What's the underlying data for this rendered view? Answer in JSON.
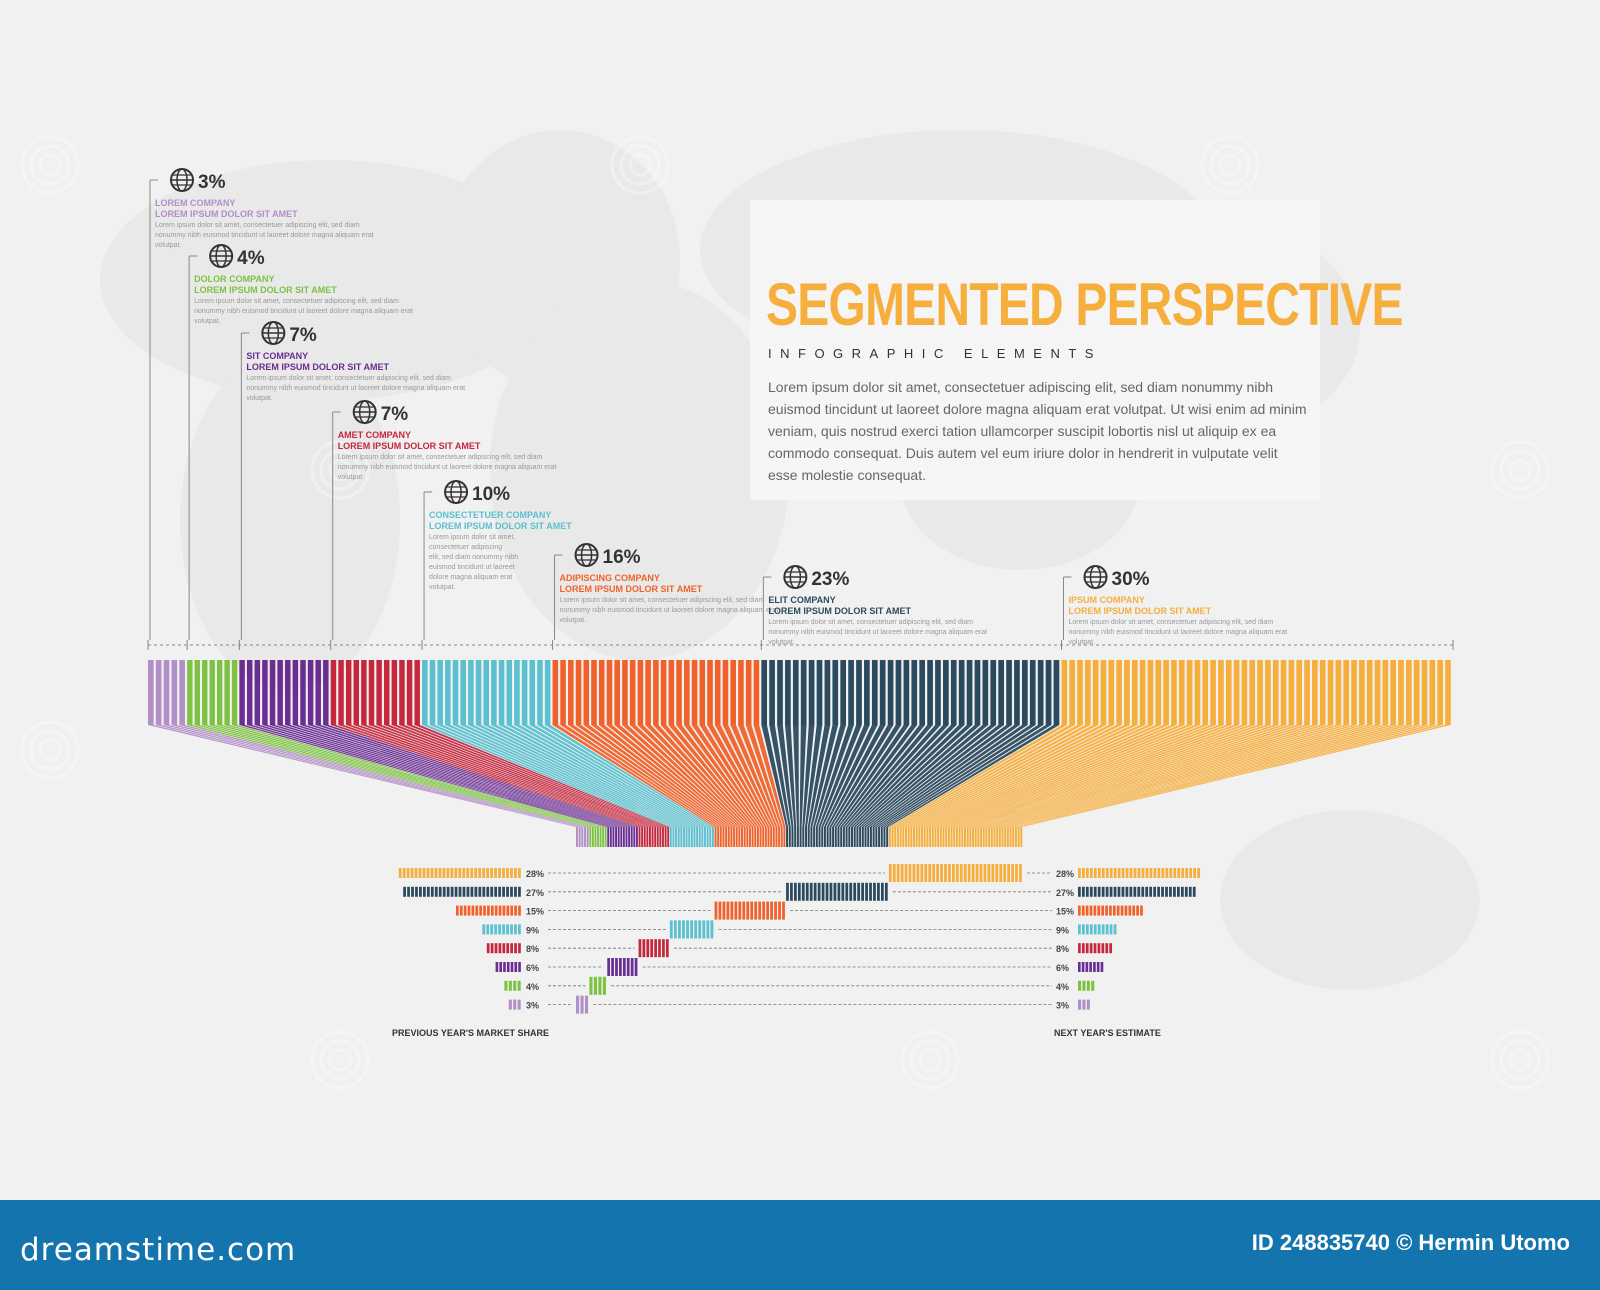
{
  "header": {
    "title": "SEGMENTED PERSPECTIVE",
    "subtitle": "INFOGRAPHIC ELEMENTS",
    "body": "Lorem ipsum dolor sit amet, consectetuer adipiscing elit, sed diam nonummy nibh euismod tincidunt ut laoreet dolore magna aliquam erat volutpat. Ut wisi enim ad minim veniam, quis nostrud exerci tation ullamcorper suscipit lobortis nisl ut aliquip ex ea commodo consequat. Duis autem vel eum iriure dolor in hendrerit in vulputate velit esse molestie consequat."
  },
  "footer": {
    "brand": "dreamstime.com",
    "credit": "ID 248835740 © Hermin Utomo"
  },
  "icons": {
    "segment_icon": "globe-icon",
    "watermark_icon": "spiral-logo-icon"
  },
  "chart_data": {
    "type": "bar",
    "segments": [
      {
        "value": 3,
        "label": "3%",
        "company": "LOREM COMPANY",
        "subtitle": "LOREM IPSUM DOLOR SIT AMET",
        "desc": "Lorem ipsum dolor sit amet, consectetuer adipiscing elit, sed diam nonummy nibh euismod tincidunt ut laoreet dolore magna aliquam erat volutpat.",
        "color": "#b28fc6"
      },
      {
        "value": 4,
        "label": "4%",
        "company": "DOLOR COMPANY",
        "subtitle": "LOREM IPSUM DOLOR SIT AMET",
        "desc": "Lorem ipsum dolor sit amet, consectetuer adipiscing elit, sed diam nonummy nibh euismod tincidunt ut laoreet dolore magna aliquam erat volutpat.",
        "color": "#7dc242"
      },
      {
        "value": 7,
        "label": "7%",
        "company": "SIT COMPANY",
        "subtitle": "LOREM IPSUM DOLOR SIT AMET",
        "desc": "Lorem ipsum dolor sit amet, consectetuer adipiscing elit, sed diam nonummy nibh euismod tincidunt ut laoreet dolore magna aliquam erat volutpat.",
        "color": "#6a2d91"
      },
      {
        "value": 7,
        "label": "7%",
        "company": "AMET COMPANY",
        "subtitle": "LOREM IPSUM DOLOR SIT AMET",
        "desc": "Lorem ipsum dolor sit amet, consectetuer adipiscing elit, sed diam nonummy nibh euismod tincidunt ut laoreet dolore magna aliquam erat volutpat.",
        "color": "#c5283d"
      },
      {
        "value": 10,
        "label": "10%",
        "company": "CONSECTETUER COMPANY",
        "subtitle": "LOREM IPSUM DOLOR SIT AMET",
        "desc": "Lorem ipsum dolor sit amet, consectetuer adipiscing elit, sed diam nonummy nibh euismod tincidunt ut laoreet dolore magna aliquam erat volutpat.",
        "color": "#5bc0cf"
      },
      {
        "value": 16,
        "label": "16%",
        "company": "ADIPISCING COMPANY",
        "subtitle": "LOREM IPSUM DOLOR SIT AMET",
        "desc": "Lorem ipsum dolor sit amet, consectetuer adipiscing elit, sed diam nonummy nibh euismod tincidunt ut laoreet dolore magna aliquam erat volutpat.",
        "color": "#f0622a"
      },
      {
        "value": 23,
        "label": "23%",
        "company": "ELIT COMPANY",
        "subtitle": "LOREM IPSUM DOLOR SIT AMET",
        "desc": "Lorem ipsum dolor sit amet, consectetuer adipiscing elit, sed diam nonummy nibh euismod tincidunt ut laoreet dolore magna aliquam erat volutpat.",
        "color": "#2c4a5e"
      },
      {
        "value": 30,
        "label": "30%",
        "company": "IPSUM COMPANY",
        "subtitle": "LOREM IPSUM DOLOR SIT AMET",
        "desc": "Lorem ipsum dolor sit amet, consectetuer adipiscing elit, sed diam nonummy nibh euismod tincidunt ut laoreet dolore magna aliquam erat volutpat.",
        "color": "#f6ae3c"
      }
    ],
    "comparison": {
      "left_label": "PREVIOUS YEAR'S MARKET SHARE",
      "right_label": "NEXT YEAR'S ESTIMATE",
      "rows": [
        {
          "color": "#f6ae3c",
          "previous": 28,
          "previous_label": "28%",
          "next": 28,
          "next_label": "28%"
        },
        {
          "color": "#2c4a5e",
          "previous": 27,
          "previous_label": "27%",
          "next": 27,
          "next_label": "27%"
        },
        {
          "color": "#f0622a",
          "previous": 15,
          "previous_label": "15%",
          "next": 15,
          "next_label": "15%"
        },
        {
          "color": "#5bc0cf",
          "previous": 9,
          "previous_label": "9%",
          "next": 9,
          "next_label": "9%"
        },
        {
          "color": "#c5283d",
          "previous": 8,
          "previous_label": "8%",
          "next": 8,
          "next_label": "8%"
        },
        {
          "color": "#6a2d91",
          "previous": 6,
          "previous_label": "6%",
          "next": 6,
          "next_label": "6%"
        },
        {
          "color": "#7dc242",
          "previous": 4,
          "previous_label": "4%",
          "next": 4,
          "next_label": "4%"
        },
        {
          "color": "#b28fc6",
          "previous": 3,
          "previous_label": "3%",
          "next": 3,
          "next_label": "3%"
        }
      ]
    }
  }
}
